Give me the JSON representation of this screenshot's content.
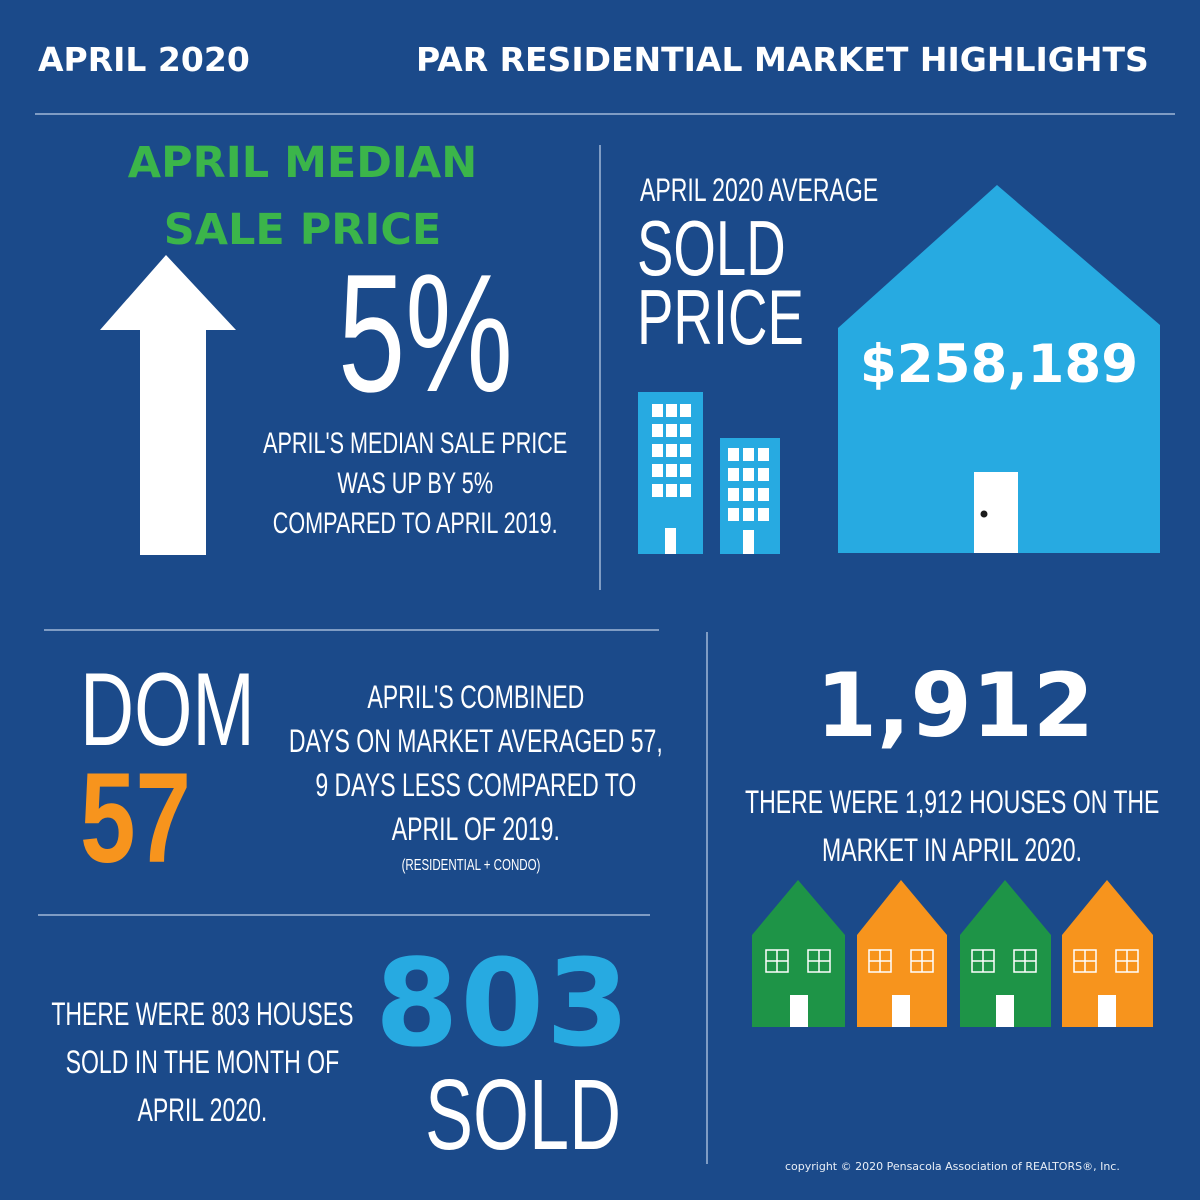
{
  "header": {
    "date": "APRIL 2020",
    "title": "PAR RESIDENTIAL MARKET HIGHLIGHTS"
  },
  "median": {
    "title_line1": "APRIL MEDIAN",
    "title_line2": "SALE PRICE",
    "percent": "5%",
    "desc_line1": "APRIL'S MEDIAN SALE PRICE",
    "desc_line2": "WAS UP BY 5%",
    "desc_line3": "COMPARED TO APRIL 2019."
  },
  "average": {
    "subtitle": "APRIL 2020 AVERAGE",
    "title_line1": "SOLD",
    "title_line2": "PRICE",
    "price": "$258,189"
  },
  "dom": {
    "label": "DOM",
    "value": "57",
    "desc_line1": "APRIL'S COMBINED",
    "desc_line2": "DAYS ON MARKET AVERAGED 57,",
    "desc_line3": "9 DAYS LESS COMPARED TO",
    "desc_line4": "APRIL OF  2019.",
    "note": "(RESIDENTIAL + CONDO)"
  },
  "inventory": {
    "value": "1,912",
    "desc_line1": "THERE WERE 1,912 HOUSES ON THE",
    "desc_line2": "MARKET IN APRIL 2020."
  },
  "sold": {
    "desc_line1": "THERE WERE 803 HOUSES",
    "desc_line2": "SOLD IN THE MONTH OF",
    "desc_line3": "APRIL 2020.",
    "value": "803",
    "label": "SOLD"
  },
  "copyright": "copyright © 2020 Pensacola Association of REALTORS®, Inc.",
  "colors": {
    "background": "#1b4a8a",
    "green": "#3bb54a",
    "orange": "#f7941d",
    "sky_blue": "#27aae1",
    "white": "#ffffff"
  },
  "icons": [
    "up-arrow-icon",
    "building-icon",
    "house-icon",
    "house-row-icon"
  ]
}
